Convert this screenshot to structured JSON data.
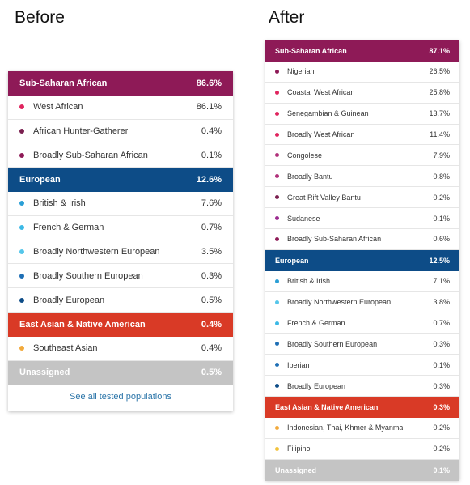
{
  "before": {
    "heading": "Before",
    "groups": [
      {
        "name": "Sub-Saharan African",
        "pct": "86.6%",
        "color": "#8e1a57",
        "items": [
          {
            "name": "West African",
            "pct": "86.1%",
            "dot": "#e0245e"
          },
          {
            "name": "African Hunter-Gatherer",
            "pct": "0.4%",
            "dot": "#7a1f4f"
          },
          {
            "name": "Broadly Sub-Saharan African",
            "pct": "0.1%",
            "dot": "#8e1a57"
          }
        ]
      },
      {
        "name": "European",
        "pct": "12.6%",
        "color": "#0d4c87",
        "items": [
          {
            "name": "British & Irish",
            "pct": "7.6%",
            "dot": "#2a9fd6"
          },
          {
            "name": "French & German",
            "pct": "0.7%",
            "dot": "#3bb9e6"
          },
          {
            "name": "Broadly Northwestern European",
            "pct": "3.5%",
            "dot": "#55c6ea"
          },
          {
            "name": "Broadly Southern European",
            "pct": "0.3%",
            "dot": "#1f6fb5"
          },
          {
            "name": "Broadly European",
            "pct": "0.5%",
            "dot": "#0d4c87"
          }
        ]
      },
      {
        "name": "East Asian & Native American",
        "pct": "0.4%",
        "color": "#d93a26",
        "items": [
          {
            "name": "Southeast Asian",
            "pct": "0.4%",
            "dot": "#f2a93b"
          }
        ]
      },
      {
        "name": "Unassigned",
        "pct": "0.5%",
        "color": "#c4c4c4",
        "items": []
      }
    ],
    "footer_link": "See all tested populations"
  },
  "after": {
    "heading": "After",
    "groups": [
      {
        "name": "Sub-Saharan African",
        "pct": "87.1%",
        "color": "#8e1a57",
        "items": [
          {
            "name": "Nigerian",
            "pct": "26.5%",
            "dot": "#8e1a57"
          },
          {
            "name": "Coastal West African",
            "pct": "25.8%",
            "dot": "#e0245e"
          },
          {
            "name": "Senegambian & Guinean",
            "pct": "13.7%",
            "dot": "#e0245e"
          },
          {
            "name": "Broadly West African",
            "pct": "11.4%",
            "dot": "#e0245e"
          },
          {
            "name": "Congolese",
            "pct": "7.9%",
            "dot": "#b0307a"
          },
          {
            "name": "Broadly Bantu",
            "pct": "0.8%",
            "dot": "#b0307a"
          },
          {
            "name": "Great Rift Valley Bantu",
            "pct": "0.2%",
            "dot": "#7a1f4f"
          },
          {
            "name": "Sudanese",
            "pct": "0.1%",
            "dot": "#9b2a8f"
          },
          {
            "name": "Broadly Sub-Saharan African",
            "pct": "0.6%",
            "dot": "#8e1a57"
          }
        ]
      },
      {
        "name": "European",
        "pct": "12.5%",
        "color": "#0d4c87",
        "items": [
          {
            "name": "British & Irish",
            "pct": "7.1%",
            "dot": "#2a9fd6"
          },
          {
            "name": "Broadly Northwestern European",
            "pct": "3.8%",
            "dot": "#55c6ea"
          },
          {
            "name": "French & German",
            "pct": "0.7%",
            "dot": "#3bb9e6"
          },
          {
            "name": "Broadly Southern European",
            "pct": "0.3%",
            "dot": "#1f6fb5"
          },
          {
            "name": "Iberian",
            "pct": "0.1%",
            "dot": "#1f6fb5"
          },
          {
            "name": "Broadly European",
            "pct": "0.3%",
            "dot": "#0d4c87"
          }
        ]
      },
      {
        "name": "East Asian & Native American",
        "pct": "0.3%",
        "color": "#d93a26",
        "items": [
          {
            "name": "Indonesian, Thai, Khmer & Myanma",
            "pct": "0.2%",
            "dot": "#f2a93b"
          },
          {
            "name": "Filipino",
            "pct": "0.2%",
            "dot": "#f2c23b"
          }
        ]
      },
      {
        "name": "Unassigned",
        "pct": "0.1%",
        "color": "#c4c4c4",
        "items": []
      }
    ]
  }
}
